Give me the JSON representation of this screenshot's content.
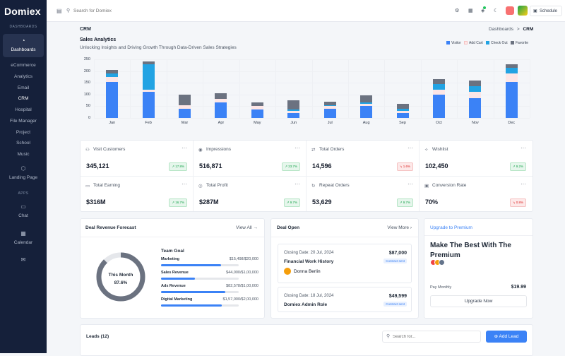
{
  "brand": {
    "logo_text": "Domiex"
  },
  "sidebar": {
    "section_dashboards": "DASHBOARDS",
    "dashboards_label": "Dashboards",
    "items": [
      "eCommerce",
      "Analytics",
      "Email",
      "CRM",
      "Hospital",
      "File Manager",
      "Project",
      "School",
      "Music"
    ],
    "landing_label": "Landing Page",
    "section_apps": "APPS",
    "chat_label": "Chat",
    "calendar_label": "Calendar"
  },
  "topbar": {
    "search_placeholder": "Search for Domiex",
    "schedule_label": "Schedule"
  },
  "page": {
    "title": "CRM",
    "breadcrumb_parent": "Dashboards",
    "breadcrumb_sep": ">",
    "breadcrumb_current": "CRM"
  },
  "analytics": {
    "title": "Sales Analytics",
    "subtitle": "Unlocking Insights and Driving Growth Through Data-Driven Sales Strategies"
  },
  "chart_data": {
    "type": "bar",
    "stacked": true,
    "categories": [
      "Jan",
      "Feb",
      "Mar",
      "Apr",
      "May",
      "Jun",
      "Jul",
      "Aug",
      "Sep",
      "Oct",
      "Nov",
      "Dec"
    ],
    "series": [
      {
        "name": "Visitor",
        "color": "#3b82f6",
        "values": [
          155,
          110,
          40,
          65,
          35,
          20,
          40,
          50,
          20,
          100,
          85,
          155
        ]
      },
      {
        "name": "Add Cart",
        "color": "#fde6e6",
        "values": [
          20,
          10,
          15,
          15,
          15,
          10,
          10,
          10,
          10,
          20,
          25,
          35
        ]
      },
      {
        "name": "Check Out",
        "color": "#22a3e3",
        "values": [
          15,
          110,
          0,
          0,
          0,
          5,
          5,
          5,
          10,
          25,
          25,
          25
        ]
      },
      {
        "name": "Favorite",
        "color": "#6b7280",
        "values": [
          15,
          10,
          45,
          25,
          15,
          40,
          15,
          30,
          20,
          20,
          25,
          15
        ]
      }
    ],
    "ylim": [
      0,
      250
    ],
    "yticks": [
      0,
      50,
      100,
      150,
      200,
      250
    ],
    "grid": true,
    "legend": "top-right"
  },
  "stats": [
    {
      "label": "Visit Customers",
      "value": "345,121",
      "badge": "17.8%",
      "trend": "up",
      "icon": "users-icon"
    },
    {
      "label": "Impressions",
      "value": "516,871",
      "badge": "23.7%",
      "trend": "up",
      "icon": "eye-icon"
    },
    {
      "label": "Total Orders",
      "value": "14,596",
      "badge": "1.6%",
      "trend": "down",
      "icon": "shuffle-icon"
    },
    {
      "label": "Wishlist",
      "value": "102,450",
      "badge": "9.2%",
      "trend": "up",
      "icon": "sparkle-icon"
    },
    {
      "label": "Total Earning",
      "value": "$316M",
      "badge": "16.7%",
      "trend": "up",
      "icon": "wallet-icon"
    },
    {
      "label": "Total Profit",
      "value": "$287M",
      "badge": "9.7%",
      "trend": "up",
      "icon": "coins-icon"
    },
    {
      "label": "Repeat Orders",
      "value": "53,629",
      "badge": "9.7%",
      "trend": "up",
      "icon": "repeat-icon"
    },
    {
      "label": "Conversion Rate",
      "value": "70%",
      "badge": "0.8%",
      "trend": "down",
      "icon": "conversion-icon"
    }
  ],
  "forecast": {
    "title": "Deal Revenue Forecast",
    "view_all": "View All",
    "donut_label": "This Month",
    "donut_value": "87.6%",
    "donut_fraction": 0.876,
    "team_goal_title": "Team Goal",
    "goals": [
      {
        "name": "Marketing",
        "value": "$15,498/$20,000",
        "fraction": 0.775
      },
      {
        "name": "Sales Revenue",
        "value": "$44,000/$1,00,000",
        "fraction": 0.44
      },
      {
        "name": "Ads Revenue",
        "value": "$82,578/$1,00,000",
        "fraction": 0.826
      },
      {
        "name": "Digital Marketing",
        "value": "$1,57,000/$2,00,000",
        "fraction": 0.785
      }
    ]
  },
  "deals": {
    "title": "Deal Open",
    "view_more": "View More",
    "items": [
      {
        "closing": "Closing Date: 20 Jul, 2024",
        "amount": "$87,000",
        "name": "Financial Work History",
        "status": "Contract sent",
        "person": "Donna Berlin"
      },
      {
        "closing": "Closing Date: 18 Jul, 2024",
        "amount": "$49,599",
        "name": "Domiex Admin Role",
        "status": "Contract sent"
      }
    ]
  },
  "premium": {
    "link": "Upgrade to Premium",
    "heading": "Make The Best With The Premium",
    "pay_label": "Pay Monthly",
    "price": "$19.99",
    "button": "Upgrade Now"
  },
  "leads": {
    "title": "Leads (12)",
    "search_placeholder": "Search for...",
    "add_button": "Add Lead"
  },
  "colors": {
    "sidebar": "#15203a",
    "accent": "#3b82f6",
    "success": "#16a34a",
    "danger": "#dc2626"
  }
}
